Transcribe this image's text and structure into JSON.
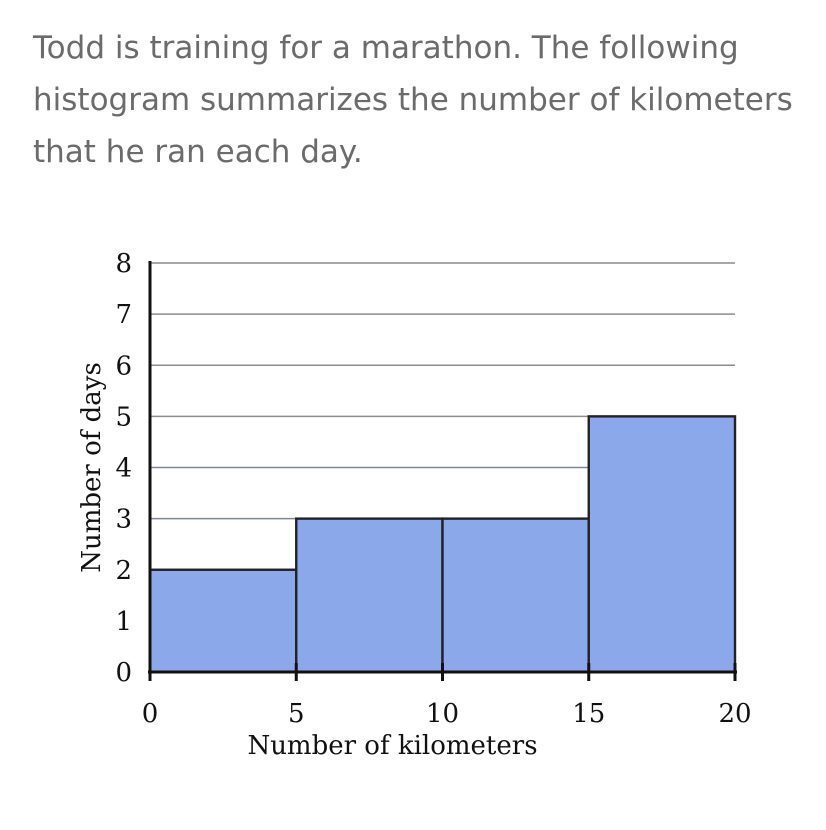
{
  "question": {
    "text": "Todd is training for a marathon. The following histogram summarizes the number of kilometers that he ran each day."
  },
  "colors": {
    "bar_fill": "#8aa8ea",
    "bar_stroke": "#222222",
    "grid": "#8c8c8c",
    "axis": "#111111",
    "question_text": "#6b6b6b"
  },
  "chart_data": {
    "type": "bar",
    "subtype": "histogram",
    "title": "",
    "xlabel": "Number of kilometers",
    "ylabel": "Number of days",
    "bins": [
      {
        "start": 0,
        "end": 5,
        "value": 2
      },
      {
        "start": 5,
        "end": 10,
        "value": 3
      },
      {
        "start": 10,
        "end": 15,
        "value": 3
      },
      {
        "start": 15,
        "end": 20,
        "value": 5
      }
    ],
    "xlim": [
      0,
      20
    ],
    "ylim": [
      0,
      8
    ],
    "xticks": [
      0,
      5,
      10,
      15,
      20
    ],
    "yticks": [
      0,
      1,
      2,
      3,
      4,
      5,
      6,
      7,
      8
    ],
    "grid": true
  }
}
